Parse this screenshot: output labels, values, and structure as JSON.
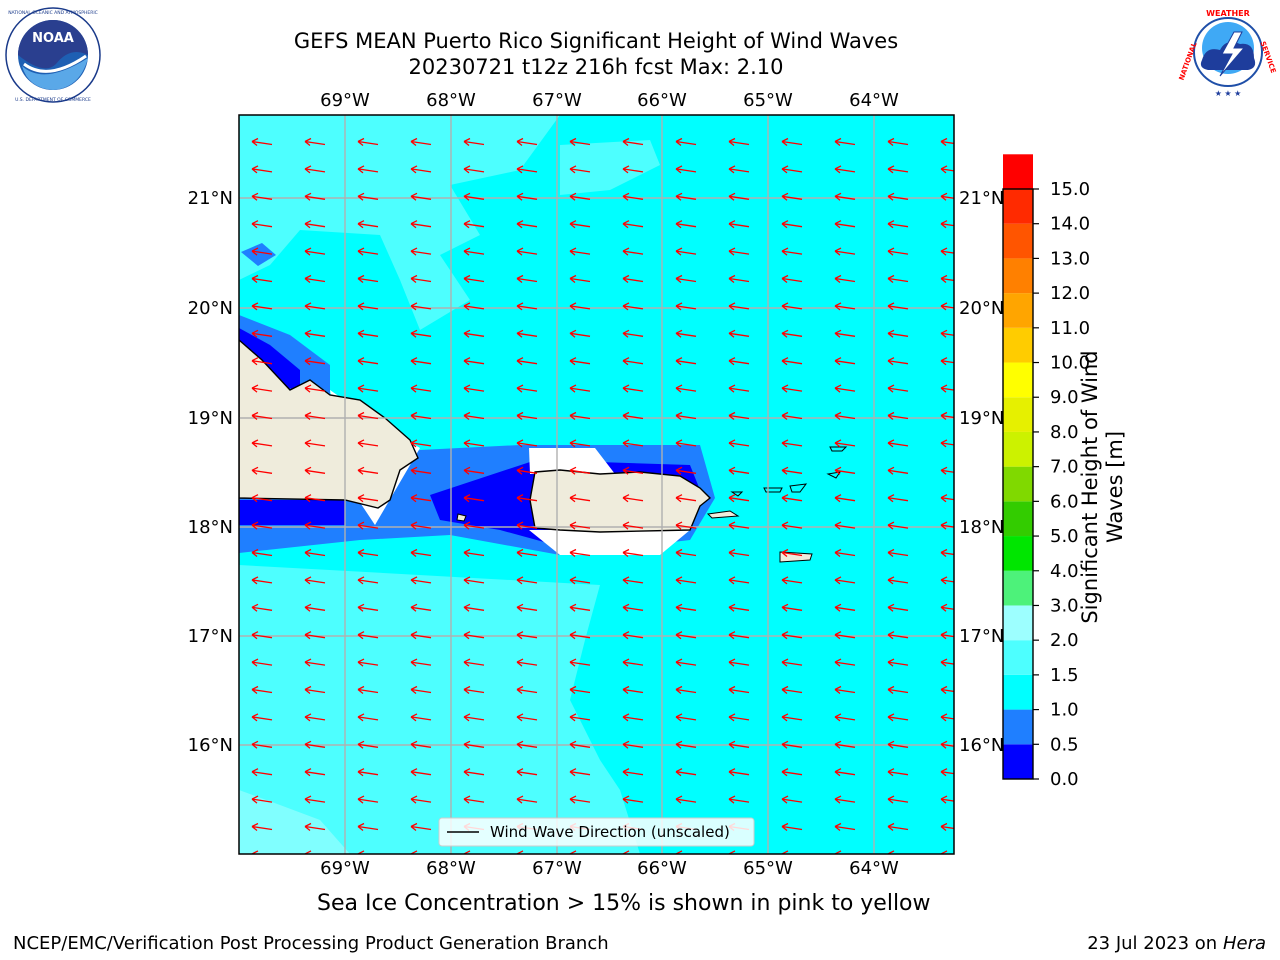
{
  "title": {
    "line1": "GEFS MEAN Puerto Rico Significant Height of Wind Waves",
    "line2": "20230721 t12z 216h fcst   Max: 2.10"
  },
  "logos": {
    "left": {
      "icon": "noaa-logo",
      "text": "NOAA",
      "ring_text": "NATIONAL OCEANIC AND ATMOSPHERIC ADMINISTRATION · U.S. DEPARTMENT OF COMMERCE"
    },
    "right": {
      "icon": "nws-logo",
      "ring_text": "NATIONAL WEATHER SERVICE"
    }
  },
  "map": {
    "lon_labels": [
      "69°W",
      "68°W",
      "67°W",
      "66°W",
      "65°W",
      "64°W"
    ],
    "lat_labels": [
      "21°N",
      "20°N",
      "19°N",
      "18°N",
      "17°N",
      "16°N"
    ],
    "legend_label": "Wind Wave Direction (unscaled)",
    "arrow_color": "#ff0000",
    "colors": {
      "ocean": "#00ffff",
      "light": "#4dffff",
      "lighter": "#80ffff",
      "mid_blue": "#1f7fff",
      "dark_blue": "#0000ff",
      "land": "#efecdc",
      "grid": "#b0b0b0"
    }
  },
  "colorbar": {
    "label": "Significant Height of Wind Waves [m]",
    "label_line1": "Significant Height of Wind",
    "label_line2": "Waves [m]",
    "ticks": [
      "15.0",
      "14.0",
      "13.0",
      "12.0",
      "11.0",
      "10.0",
      "9.0",
      "8.0",
      "7.0",
      "6.0",
      "5.0",
      "4.0",
      "3.0",
      "2.0",
      "1.5",
      "1.0",
      "0.5",
      "0.0"
    ],
    "colors": [
      "#0000ff",
      "#1f7fff",
      "#00ffff",
      "#4dffff",
      "#9dffff",
      "#4df27a",
      "#00e600",
      "#33cc00",
      "#80d900",
      "#ccf200",
      "#e6f000",
      "#ffff00",
      "#ffcc00",
      "#ffa500",
      "#ff8000",
      "#ff5500",
      "#ff2a00",
      "#ff0000"
    ]
  },
  "subtitle": "Sea Ice Concentration > 15% is shown in pink to yellow",
  "footer": {
    "left": "NCEP/EMC/Verification Post Processing Product Generation Branch",
    "right_prefix": "23 Jul 2023 on ",
    "right_host": "Hera"
  }
}
